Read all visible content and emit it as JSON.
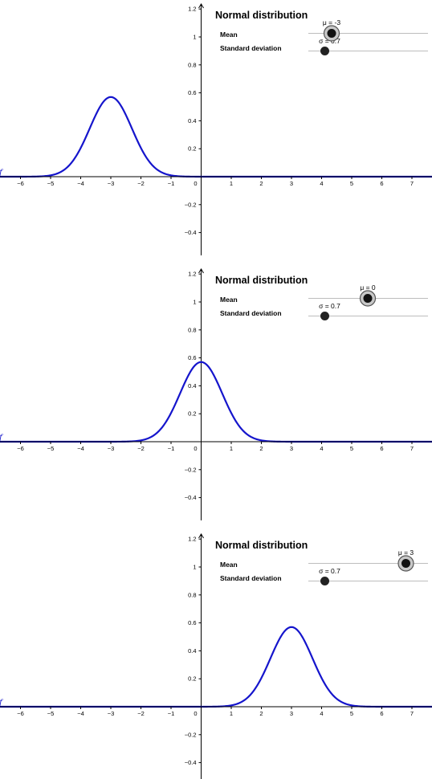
{
  "chart_data": [
    {
      "type": "line",
      "title": "Normal distribution",
      "xlabel": "",
      "ylabel": "",
      "xlim": [
        -6.9,
        7.7
      ],
      "ylim": [
        -0.5,
        1.25
      ],
      "x_ticks": [
        -6,
        -5,
        -4,
        -3,
        -2,
        -1,
        0,
        1,
        2,
        3,
        4,
        5,
        6,
        7
      ],
      "y_ticks": [
        -0.4,
        -0.2,
        0.2,
        0.4,
        0.6,
        0.8,
        1,
        1.2
      ],
      "sliders": [
        {
          "label": "Mean",
          "value_text": "μ = -3",
          "value": -3,
          "min": -7,
          "max": 7
        },
        {
          "label": "Standard deviation",
          "value_text": "σ = 0.7",
          "value": 0.7
        }
      ],
      "series": [
        {
          "mu": -3,
          "sigma": 0.7,
          "peak": 0.57,
          "color": "#1515cc"
        }
      ],
      "grid": false
    },
    {
      "type": "line",
      "title": "Normal distribution",
      "xlabel": "",
      "ylabel": "",
      "xlim": [
        -6.9,
        7.7
      ],
      "ylim": [
        -0.5,
        1.25
      ],
      "x_ticks": [
        -6,
        -5,
        -4,
        -3,
        -2,
        -1,
        0,
        1,
        2,
        3,
        4,
        5,
        6,
        7
      ],
      "y_ticks": [
        -0.4,
        -0.2,
        0.2,
        0.4,
        0.6,
        0.8,
        1,
        1.2
      ],
      "sliders": [
        {
          "label": "Mean",
          "value_text": "μ = 0",
          "value": 0,
          "min": -7,
          "max": 7
        },
        {
          "label": "Standard deviation",
          "value_text": "σ = 0.7",
          "value": 0.7
        }
      ],
      "series": [
        {
          "mu": 0,
          "sigma": 0.7,
          "peak": 0.57,
          "color": "#1515cc"
        }
      ],
      "grid": false
    },
    {
      "type": "line",
      "title": "Normal distribution",
      "xlabel": "",
      "ylabel": "",
      "xlim": [
        -6.9,
        7.7
      ],
      "ylim": [
        -0.5,
        1.25
      ],
      "x_ticks": [
        -6,
        -5,
        -4,
        -3,
        -2,
        -1,
        0,
        1,
        2,
        3,
        4,
        5,
        6,
        7
      ],
      "y_ticks": [
        -0.4,
        -0.2,
        0.2,
        0.4,
        0.6,
        0.8,
        1,
        1.2
      ],
      "sliders": [
        {
          "label": "Mean",
          "value_text": "μ = 3",
          "value": 3,
          "min": -7,
          "max": 7
        },
        {
          "label": "Standard deviation",
          "value_text": "σ = 0.7",
          "value": 0.7
        }
      ],
      "series": [
        {
          "mu": 3,
          "sigma": 0.7,
          "peak": 0.57,
          "color": "#1515cc"
        }
      ],
      "grid": false
    }
  ],
  "axis_name": "f"
}
